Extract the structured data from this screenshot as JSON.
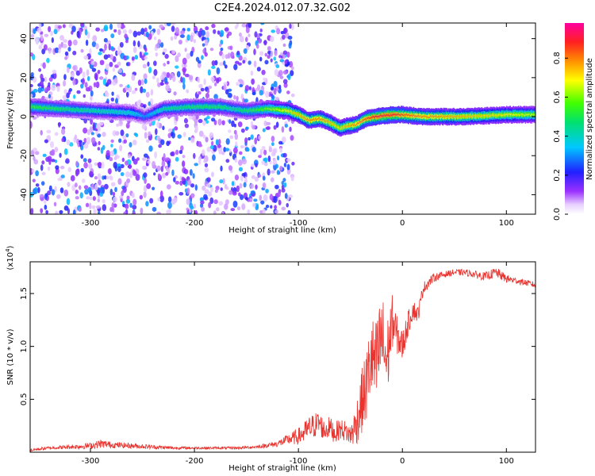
{
  "title": "C2E4.2024.012.07.32.G02",
  "chart_data": [
    {
      "type": "heatmap",
      "xlabel": "Height of straight line (km)",
      "ylabel": "Frequency (Hz)",
      "xlim": [
        -358,
        128
      ],
      "ylim": [
        -50,
        48
      ],
      "x_ticks": [
        -300,
        -200,
        -100,
        0,
        100
      ],
      "x_tick_labels": [
        "-300",
        "-200",
        "-100",
        "0",
        "100"
      ],
      "y_ticks": [
        -40,
        -20,
        0,
        20,
        40
      ],
      "y_tick_labels": [
        "-40",
        "-20",
        "0",
        "20",
        "40"
      ],
      "colorbar": {
        "label": "Normalized spectral amplitude",
        "range": [
          0,
          0.98
        ],
        "ticks": [
          0.0,
          0.2,
          0.4,
          0.6,
          0.8
        ],
        "tick_labels": [
          "0.0",
          "0.2",
          "0.4",
          "0.6",
          "0.8"
        ],
        "colormap": "rainbow (white, violet, blue, cyan, green, yellow, orange, red, magenta)"
      },
      "ridge": {
        "description": "dominant frequency track",
        "x": [
          -358,
          -330,
          -300,
          -260,
          -248,
          -230,
          -200,
          -175,
          -165,
          -150,
          -130,
          -110,
          -100,
          -90,
          -80,
          -70,
          -60,
          -55,
          -45,
          -35,
          -25,
          -10,
          0,
          20,
          60,
          100,
          128
        ],
        "y": [
          5,
          4,
          3,
          2,
          0,
          4,
          5,
          5,
          4,
          3,
          4,
          3,
          1,
          -2,
          -1,
          -3,
          -6,
          -5,
          -4,
          -1,
          0,
          1,
          1,
          0,
          0,
          1,
          1
        ],
        "amplitude": [
          0.55,
          0.5,
          0.45,
          0.4,
          0.3,
          0.45,
          0.5,
          0.5,
          0.45,
          0.5,
          0.6,
          0.7,
          0.75,
          0.8,
          0.8,
          0.75,
          0.7,
          0.75,
          0.8,
          0.85,
          0.9,
          0.9,
          0.85,
          0.8,
          0.75,
          0.7,
          0.65
        ]
      },
      "scatter_noise": {
        "description": "broadband speckle present before the transition",
        "x_range": [
          -358,
          -105
        ],
        "y_range": [
          -50,
          48
        ],
        "amplitude_range": [
          0.05,
          0.35
        ]
      }
    },
    {
      "type": "line",
      "xlabel": "Height of straight line (km)",
      "ylabel": "SNR (10 * v/v)",
      "y_multiplier_label": "(x10",
      "y_multiplier_exp": "4",
      "y_multiplier_close": ")",
      "xlim": [
        -358,
        128
      ],
      "ylim": [
        0,
        1.8
      ],
      "x_ticks": [
        -300,
        -200,
        -100,
        0,
        100
      ],
      "x_tick_labels": [
        "-300",
        "-200",
        "-100",
        "0",
        "100"
      ],
      "y_ticks": [
        0.5,
        1.0,
        1.5
      ],
      "y_tick_labels": [
        "0.5",
        "1.0",
        "1.5"
      ],
      "line_color": "#e8332e",
      "series": [
        {
          "x": [
            -358,
            -340,
            -320,
            -300,
            -290,
            -280,
            -260,
            -240,
            -220,
            -200,
            -180,
            -160,
            -140,
            -120,
            -110,
            -100,
            -95,
            -90,
            -85,
            -80,
            -75,
            -70,
            -65,
            -60,
            -55,
            -50,
            -45,
            -40,
            -35,
            -30,
            -25,
            -20,
            -15,
            -10,
            -5,
            0,
            5,
            10,
            15,
            20,
            25,
            30,
            40,
            50,
            60,
            70,
            80,
            90,
            100,
            110,
            120,
            128
          ],
          "y": [
            0.02,
            0.04,
            0.05,
            0.06,
            0.08,
            0.07,
            0.06,
            0.05,
            0.04,
            0.04,
            0.04,
            0.04,
            0.05,
            0.08,
            0.12,
            0.15,
            0.18,
            0.22,
            0.25,
            0.28,
            0.2,
            0.24,
            0.18,
            0.22,
            0.2,
            0.16,
            0.25,
            0.45,
            0.6,
            0.9,
            0.8,
            1.1,
            0.85,
            1.25,
            1.1,
            1.0,
            1.2,
            1.35,
            1.3,
            1.55,
            1.6,
            1.65,
            1.68,
            1.7,
            1.7,
            1.68,
            1.66,
            1.7,
            1.64,
            1.62,
            1.6,
            1.58
          ],
          "noise_amplitude": [
            0.015,
            0.015,
            0.02,
            0.03,
            0.04,
            0.03,
            0.025,
            0.02,
            0.015,
            0.012,
            0.012,
            0.012,
            0.015,
            0.03,
            0.05,
            0.08,
            0.1,
            0.12,
            0.12,
            0.12,
            0.1,
            0.1,
            0.1,
            0.1,
            0.1,
            0.1,
            0.2,
            0.3,
            0.35,
            0.4,
            0.45,
            0.45,
            0.4,
            0.25,
            0.18,
            0.15,
            0.12,
            0.1,
            0.08,
            0.06,
            0.05,
            0.04,
            0.03,
            0.03,
            0.03,
            0.035,
            0.04,
            0.05,
            0.04,
            0.03,
            0.03,
            0.03
          ]
        }
      ]
    }
  ]
}
